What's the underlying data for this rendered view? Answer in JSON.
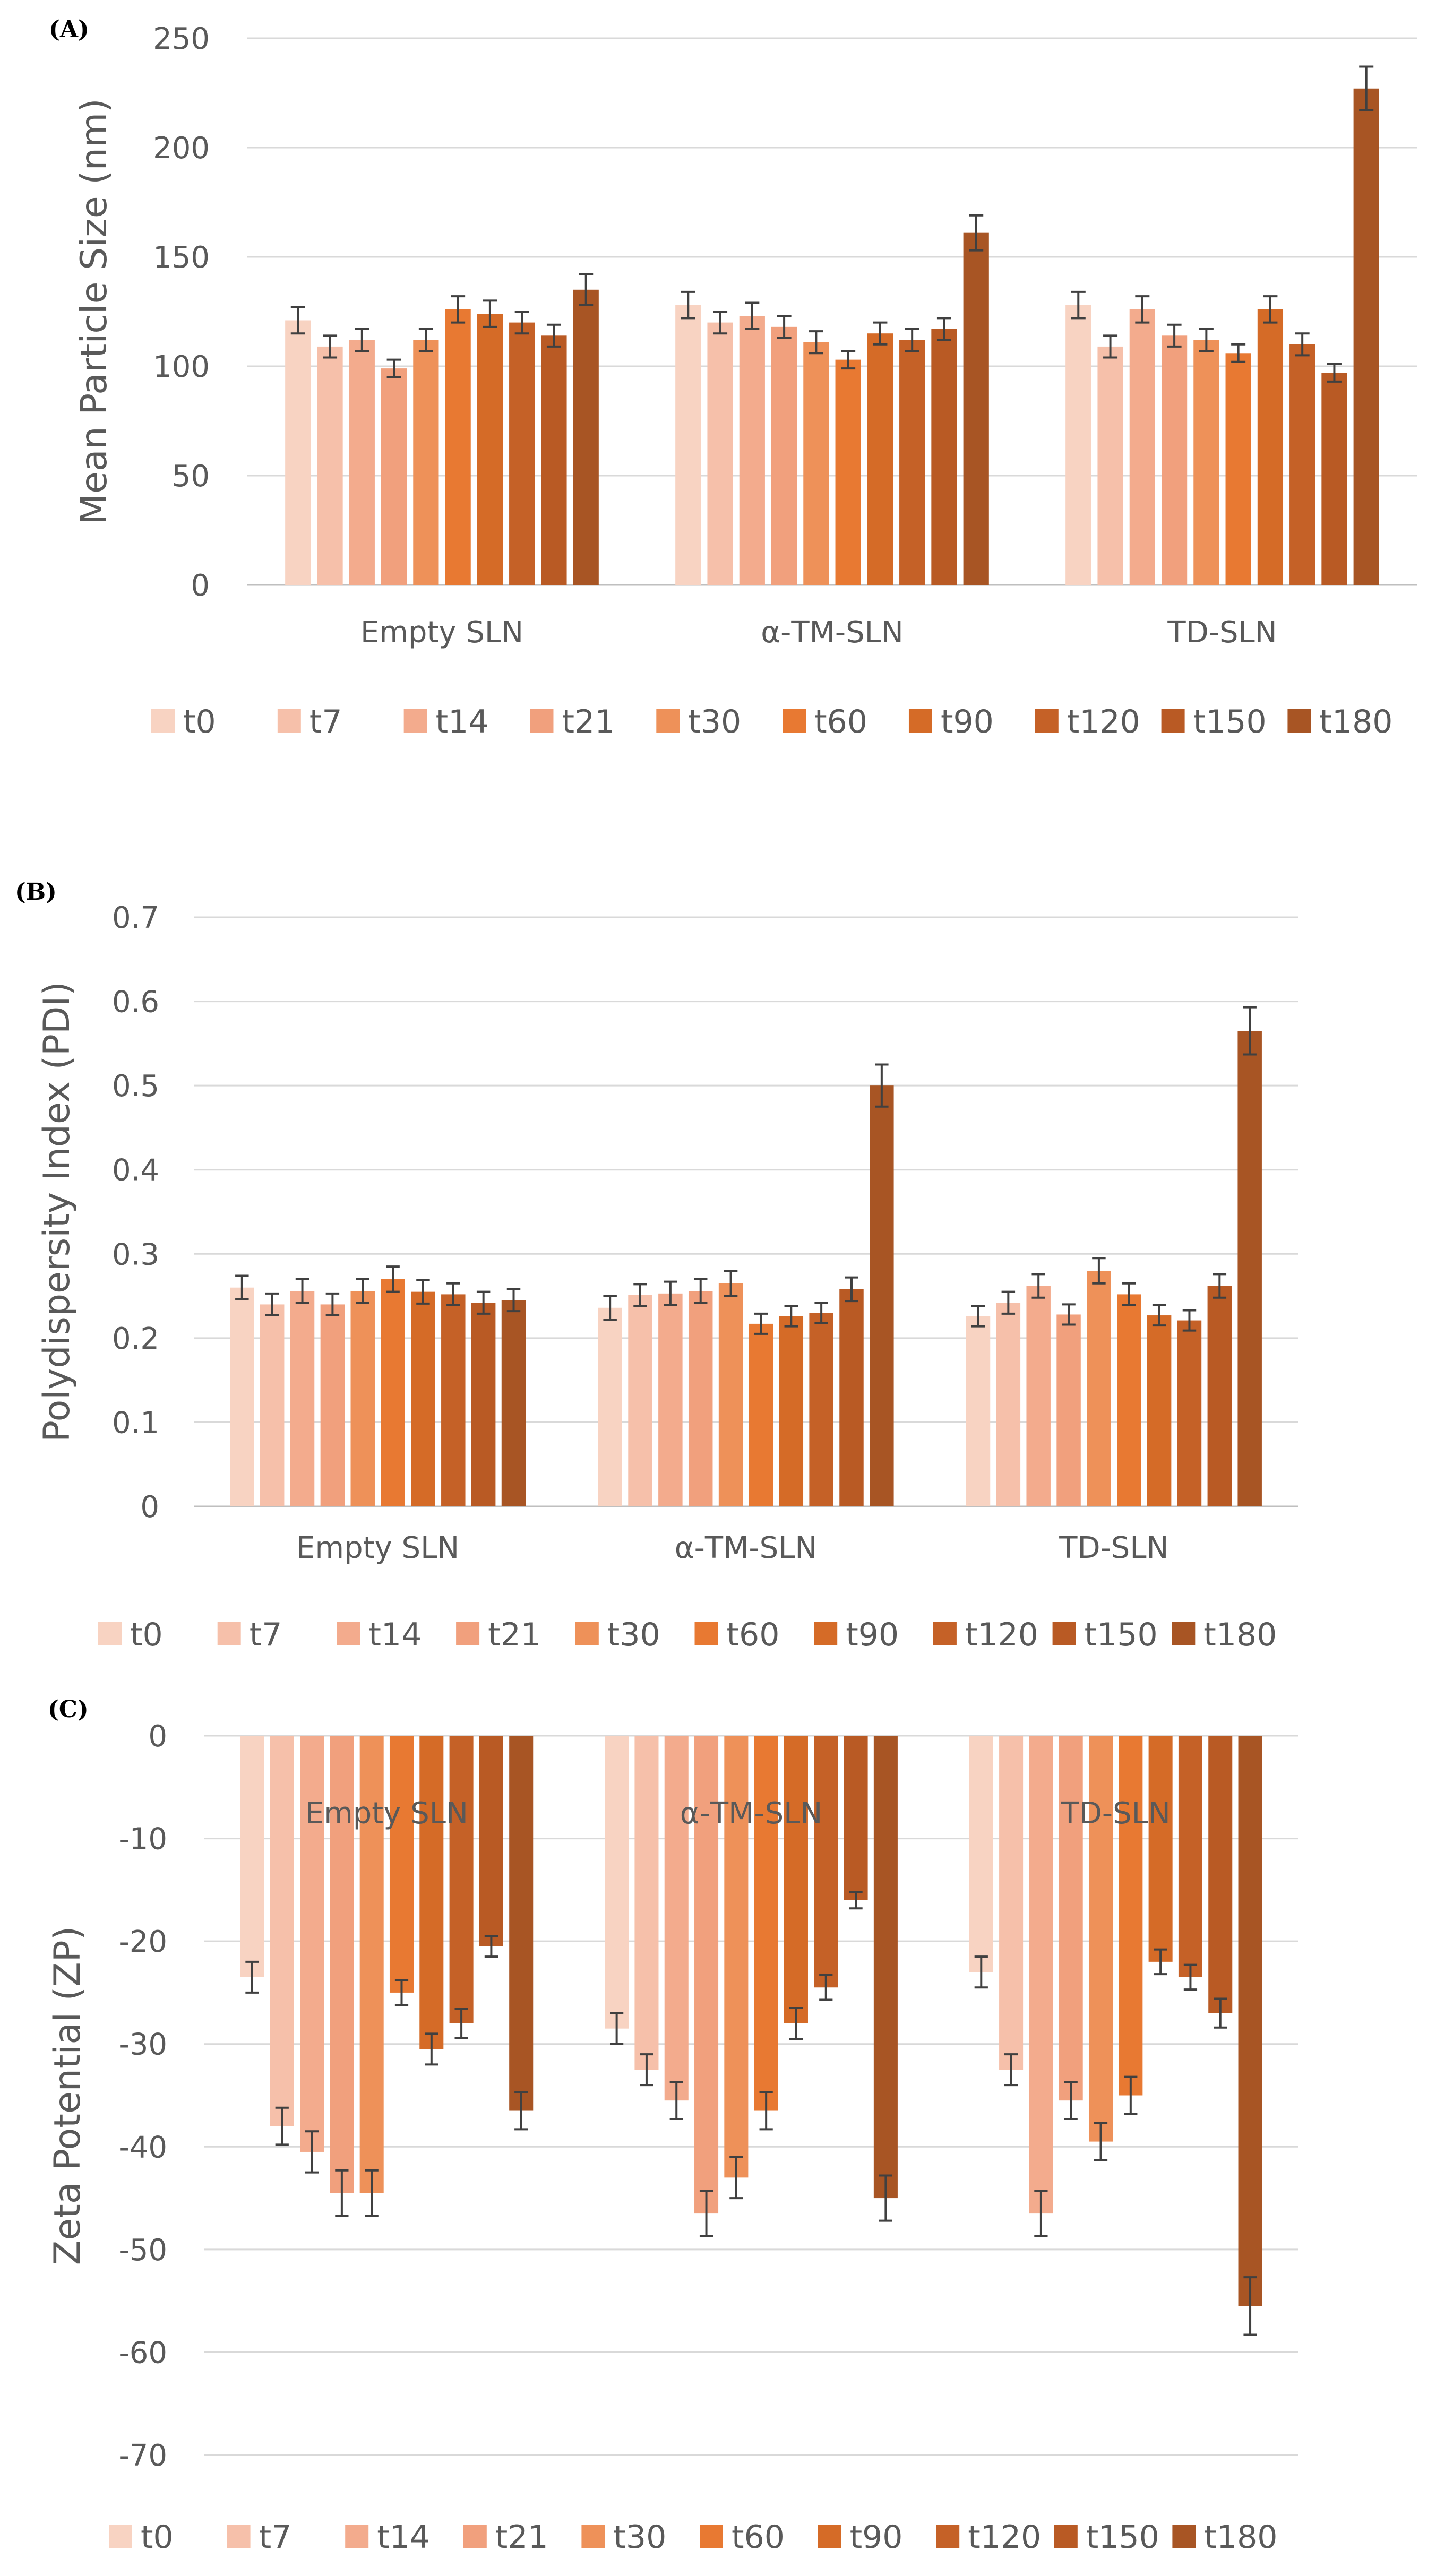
{
  "colors": [
    "#f8d3c2",
    "#f6c0aa",
    "#f3ab8d",
    "#f1a07d",
    "#ee9159",
    "#e87932",
    "#d56b27",
    "#c56127",
    "#b95a24",
    "#a85524"
  ],
  "legend": [
    "t0",
    "t7",
    "t14",
    "t21",
    "t30",
    "t60",
    "t90",
    "t120",
    "t150",
    "t180"
  ],
  "chart_data": [
    {
      "panel_label": "(A)",
      "type": "bar",
      "ylabel": "Mean Particle Size (nm)",
      "ylim": [
        0,
        250
      ],
      "yticks": [
        "0",
        "50",
        "100",
        "150",
        "200",
        "250"
      ],
      "categories": [
        "Empty SLN",
        "α-TM-SLN",
        "TD-SLN"
      ],
      "category_position": "bottom",
      "legend_position": "bottom",
      "grid": true,
      "series": [
        {
          "name": "t0",
          "values": [
            121,
            128,
            128
          ],
          "errors": [
            6,
            6,
            6
          ]
        },
        {
          "name": "t7",
          "values": [
            109,
            120,
            109
          ],
          "errors": [
            5,
            5,
            5
          ]
        },
        {
          "name": "t14",
          "values": [
            112,
            123,
            126
          ],
          "errors": [
            5,
            6,
            6
          ]
        },
        {
          "name": "t21",
          "values": [
            99,
            118,
            114
          ],
          "errors": [
            4,
            5,
            5
          ]
        },
        {
          "name": "t30",
          "values": [
            112,
            111,
            112
          ],
          "errors": [
            5,
            5,
            5
          ]
        },
        {
          "name": "t60",
          "values": [
            126,
            103,
            106
          ],
          "errors": [
            6,
            4,
            4
          ]
        },
        {
          "name": "t90",
          "values": [
            124,
            115,
            126
          ],
          "errors": [
            6,
            5,
            6
          ]
        },
        {
          "name": "t120",
          "values": [
            120,
            112,
            110
          ],
          "errors": [
            5,
            5,
            5
          ]
        },
        {
          "name": "t150",
          "values": [
            114,
            117,
            97
          ],
          "errors": [
            5,
            5,
            4
          ]
        },
        {
          "name": "t180",
          "values": [
            135,
            161,
            227
          ],
          "errors": [
            7,
            8,
            10
          ]
        }
      ]
    },
    {
      "panel_label": "(B)",
      "type": "bar",
      "ylabel": "Polydispersity Index (PDI)",
      "ylim": [
        0,
        0.7
      ],
      "yticks": [
        "0",
        "0.1",
        "0.2",
        "0.3",
        "0.4",
        "0.5",
        "0.6",
        "0.7"
      ],
      "categories": [
        "Empty SLN",
        "α-TM-SLN",
        "TD-SLN"
      ],
      "category_position": "bottom",
      "legend_position": "bottom",
      "grid": true,
      "series": [
        {
          "name": "t0",
          "values": [
            0.26,
            0.236,
            0.226
          ],
          "errors": [
            0.014,
            0.014,
            0.012
          ]
        },
        {
          "name": "t7",
          "values": [
            0.24,
            0.251,
            0.242
          ],
          "errors": [
            0.013,
            0.013,
            0.013
          ]
        },
        {
          "name": "t14",
          "values": [
            0.256,
            0.253,
            0.262
          ],
          "errors": [
            0.014,
            0.014,
            0.014
          ]
        },
        {
          "name": "t21",
          "values": [
            0.24,
            0.256,
            0.228
          ],
          "errors": [
            0.013,
            0.014,
            0.012
          ]
        },
        {
          "name": "t30",
          "values": [
            0.256,
            0.265,
            0.28
          ],
          "errors": [
            0.014,
            0.015,
            0.015
          ]
        },
        {
          "name": "t60",
          "values": [
            0.27,
            0.217,
            0.252
          ],
          "errors": [
            0.015,
            0.012,
            0.013
          ]
        },
        {
          "name": "t90",
          "values": [
            0.255,
            0.226,
            0.227
          ],
          "errors": [
            0.014,
            0.012,
            0.012
          ]
        },
        {
          "name": "t120",
          "values": [
            0.252,
            0.23,
            0.221
          ],
          "errors": [
            0.013,
            0.012,
            0.012
          ]
        },
        {
          "name": "t150",
          "values": [
            0.242,
            0.258,
            0.262
          ],
          "errors": [
            0.013,
            0.014,
            0.014
          ]
        },
        {
          "name": "t180",
          "values": [
            0.245,
            0.5,
            0.565
          ],
          "errors": [
            0.013,
            0.025,
            0.028
          ]
        }
      ]
    },
    {
      "panel_label": "(C)",
      "type": "bar",
      "ylabel": "Zeta Potential (ZP)",
      "ylim": [
        -70,
        0
      ],
      "yticks": [
        "-70",
        "-60",
        "-50",
        "-40",
        "-30",
        "-20",
        "-10",
        "0"
      ],
      "categories": [
        "Empty SLN",
        "α-TM-SLN",
        "TD-SLN"
      ],
      "category_position": "top",
      "legend_position": "bottom",
      "grid": true,
      "series": [
        {
          "name": "t0",
          "values": [
            -23.5,
            -28.5,
            -23
          ],
          "errors": [
            1.5,
            1.5,
            1.5
          ]
        },
        {
          "name": "t7",
          "values": [
            -38,
            -32.5,
            -32.5
          ],
          "errors": [
            1.8,
            1.5,
            1.5
          ]
        },
        {
          "name": "t14",
          "values": [
            -40.5,
            -35.5,
            -46.5
          ],
          "errors": [
            2,
            1.8,
            2.2
          ]
        },
        {
          "name": "t21",
          "values": [
            -44.5,
            -46.5,
            -35.5
          ],
          "errors": [
            2.2,
            2.2,
            1.8
          ]
        },
        {
          "name": "t30",
          "values": [
            -44.5,
            -43,
            -39.5
          ],
          "errors": [
            2.2,
            2,
            1.8
          ]
        },
        {
          "name": "t60",
          "values": [
            -25,
            -36.5,
            -35
          ],
          "errors": [
            1.2,
            1.8,
            1.8
          ]
        },
        {
          "name": "t90",
          "values": [
            -30.5,
            -28,
            -22
          ],
          "errors": [
            1.5,
            1.5,
            1.2
          ]
        },
        {
          "name": "t120",
          "values": [
            -28,
            -24.5,
            -23.5
          ],
          "errors": [
            1.4,
            1.2,
            1.2
          ]
        },
        {
          "name": "t150",
          "values": [
            -20.5,
            -16,
            -27
          ],
          "errors": [
            1,
            0.8,
            1.4
          ]
        },
        {
          "name": "t180",
          "values": [
            -36.5,
            -45,
            -55.5
          ],
          "errors": [
            1.8,
            2.2,
            2.8
          ]
        }
      ]
    }
  ]
}
